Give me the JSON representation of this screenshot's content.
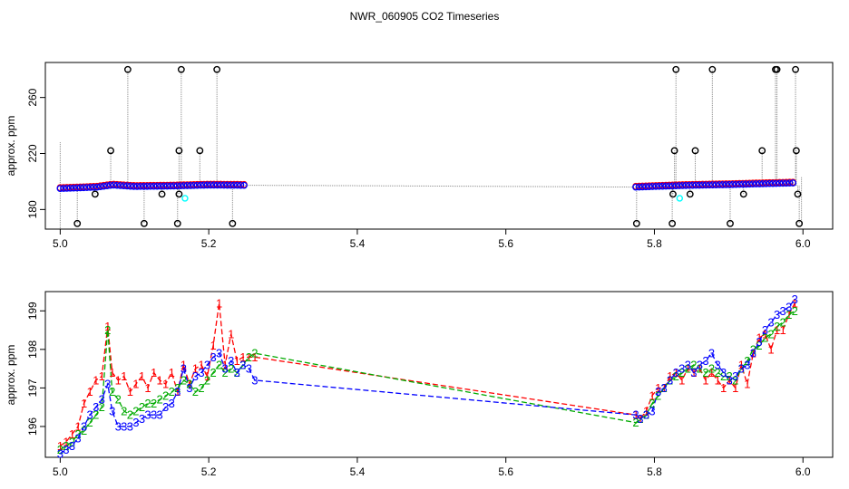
{
  "figure": {
    "title": "NWR_060905  CO2 Timeseries"
  },
  "chart_data": [
    {
      "type": "scatter",
      "title": "",
      "xlabel": "",
      "ylabel": "approx. ppm",
      "xlim": [
        4.98,
        6.04
      ],
      "ylim": [
        166,
        285
      ],
      "xticks": [
        5.0,
        5.2,
        5.4,
        5.6,
        5.8,
        6.0
      ],
      "xtick_labels": [
        "5.0",
        "5.2",
        "5.4",
        "5.6",
        "5.8",
        "6.0"
      ],
      "yticks": [
        180,
        220,
        260
      ],
      "ytick_labels": [
        "180",
        "220",
        "260"
      ],
      "colors": {
        "line": "#888888",
        "points": "#0000ff",
        "points_alt": "#ff0000",
        "points_alt2": "#00aa00",
        "outlier": "#000000",
        "cyan": "#00ffff"
      },
      "baseline": [
        [
          5.0,
          195.0
        ],
        [
          5.05,
          196.0
        ],
        [
          5.07,
          197.5
        ],
        [
          5.1,
          196.5
        ],
        [
          5.15,
          196.8
        ],
        [
          5.2,
          197.5
        ],
        [
          5.25,
          197.3
        ],
        [
          5.4,
          197.0
        ],
        [
          5.6,
          196.5
        ],
        [
          5.775,
          196.0
        ],
        [
          5.8,
          196.5
        ],
        [
          5.85,
          197.3
        ],
        [
          5.9,
          197.8
        ],
        [
          5.95,
          198.5
        ],
        [
          5.99,
          199.0
        ]
      ],
      "outliers_high": [
        5.068,
        5.091,
        5.16,
        5.163,
        5.188,
        5.211,
        5.827,
        5.829,
        5.855,
        5.878,
        5.945,
        5.963,
        5.965,
        5.99,
        5.991
      ],
      "outliers_high_values": [
        222,
        280,
        222,
        280,
        222,
        280,
        222,
        280,
        222,
        280,
        222,
        280,
        280,
        280,
        222
      ],
      "outliers_low": [
        5.023,
        5.047,
        5.113,
        5.137,
        5.158,
        5.16,
        5.232,
        5.776,
        5.824,
        5.825,
        5.848,
        5.902,
        5.92,
        5.993,
        5.995
      ],
      "outliers_low_values": [
        170,
        191,
        170,
        191,
        170,
        191,
        170,
        170,
        170,
        191,
        191,
        170,
        191,
        191,
        170
      ],
      "cyan_points_x": [
        5.168,
        5.834
      ],
      "cyan_points_y": [
        188,
        188
      ]
    },
    {
      "type": "line",
      "title": "",
      "xlabel": "",
      "ylabel": "approx. ppm",
      "xlim": [
        4.98,
        6.04
      ],
      "ylim": [
        195.2,
        199.5
      ],
      "xticks": [
        5.0,
        5.2,
        5.4,
        5.6,
        5.8,
        6.0
      ],
      "xtick_labels": [
        "5.0",
        "5.2",
        "5.4",
        "5.6",
        "5.8",
        "6.0"
      ],
      "yticks": [
        196,
        197,
        198,
        199
      ],
      "ytick_labels": [
        "196",
        "197",
        "198",
        "199"
      ],
      "series": [
        {
          "name": "1",
          "color": "#ff0000",
          "x": [
            5.0,
            5.008,
            5.016,
            5.024,
            5.032,
            5.04,
            5.048,
            5.056,
            5.064,
            5.07,
            5.078,
            5.086,
            5.094,
            5.102,
            5.11,
            5.118,
            5.126,
            5.134,
            5.142,
            5.15,
            5.158,
            5.166,
            5.174,
            5.182,
            5.19,
            5.198,
            5.206,
            5.214,
            5.222,
            5.23,
            5.238,
            5.246,
            5.254,
            5.262,
            5.775,
            5.781,
            5.789,
            5.797,
            5.805,
            5.813,
            5.821,
            5.829,
            5.837,
            5.845,
            5.853,
            5.861,
            5.869,
            5.877,
            5.885,
            5.893,
            5.901,
            5.909,
            5.917,
            5.925,
            5.933,
            5.941,
            5.949,
            5.957,
            5.965,
            5.973,
            5.981,
            5.989
          ],
          "y": [
            195.5,
            195.6,
            195.8,
            196.0,
            196.6,
            196.9,
            197.2,
            197.3,
            198.6,
            197.4,
            197.2,
            197.3,
            196.9,
            197.1,
            197.3,
            197.0,
            197.4,
            197.2,
            197.1,
            197.4,
            196.9,
            197.6,
            197.1,
            197.5,
            197.6,
            197.3,
            198.1,
            199.2,
            197.6,
            198.4,
            197.7,
            197.8,
            197.8,
            197.8,
            196.3,
            196.2,
            196.4,
            196.8,
            197.0,
            197.0,
            197.3,
            197.4,
            197.2,
            197.5,
            197.4,
            197.5,
            197.2,
            197.4,
            197.2,
            197.0,
            197.2,
            197.0,
            197.6,
            197.1,
            197.9,
            198.3,
            198.4,
            198.0,
            198.5,
            198.5,
            198.9,
            199.2
          ]
        },
        {
          "name": "2",
          "color": "#00aa00",
          "x": [
            5.0,
            5.008,
            5.016,
            5.024,
            5.032,
            5.04,
            5.048,
            5.056,
            5.064,
            5.07,
            5.078,
            5.086,
            5.094,
            5.102,
            5.11,
            5.118,
            5.126,
            5.134,
            5.142,
            5.15,
            5.158,
            5.166,
            5.174,
            5.182,
            5.19,
            5.198,
            5.206,
            5.214,
            5.222,
            5.23,
            5.238,
            5.246,
            5.254,
            5.262,
            5.775,
            5.781,
            5.789,
            5.797,
            5.805,
            5.813,
            5.821,
            5.829,
            5.837,
            5.845,
            5.853,
            5.861,
            5.869,
            5.877,
            5.885,
            5.893,
            5.901,
            5.909,
            5.917,
            5.925,
            5.933,
            5.941,
            5.949,
            5.957,
            5.965,
            5.973,
            5.981,
            5.989
          ],
          "y": [
            195.4,
            195.5,
            195.6,
            195.8,
            195.9,
            196.1,
            196.3,
            196.5,
            198.5,
            196.9,
            196.7,
            196.4,
            196.3,
            196.4,
            196.5,
            196.6,
            196.6,
            196.7,
            196.8,
            196.9,
            197.0,
            197.2,
            197.1,
            196.9,
            197.0,
            197.2,
            197.4,
            197.6,
            197.4,
            197.5,
            197.4,
            197.6,
            197.8,
            197.9,
            196.1,
            196.2,
            196.3,
            196.6,
            196.8,
            197.0,
            197.2,
            197.3,
            197.4,
            197.5,
            197.6,
            197.5,
            197.4,
            197.5,
            197.4,
            197.3,
            197.3,
            197.2,
            197.5,
            197.7,
            198.0,
            198.1,
            198.3,
            198.4,
            198.6,
            198.7,
            198.9,
            199.0
          ]
        },
        {
          "name": "3",
          "color": "#0000ff",
          "x": [
            5.0,
            5.008,
            5.016,
            5.024,
            5.032,
            5.04,
            5.048,
            5.056,
            5.064,
            5.07,
            5.078,
            5.086,
            5.094,
            5.102,
            5.11,
            5.118,
            5.126,
            5.134,
            5.142,
            5.15,
            5.158,
            5.166,
            5.174,
            5.182,
            5.19,
            5.198,
            5.206,
            5.214,
            5.222,
            5.23,
            5.238,
            5.246,
            5.254,
            5.262,
            5.775,
            5.781,
            5.789,
            5.797,
            5.805,
            5.813,
            5.821,
            5.829,
            5.837,
            5.845,
            5.853,
            5.861,
            5.869,
            5.877,
            5.885,
            5.893,
            5.901,
            5.909,
            5.917,
            5.925,
            5.933,
            5.941,
            5.949,
            5.957,
            5.965,
            5.973,
            5.981,
            5.989
          ],
          "y": [
            195.3,
            195.4,
            195.5,
            195.7,
            196.0,
            196.3,
            196.5,
            196.7,
            197.1,
            196.4,
            196.0,
            196.0,
            196.0,
            196.1,
            196.2,
            196.3,
            196.3,
            196.3,
            196.5,
            196.6,
            196.9,
            197.5,
            197.0,
            197.3,
            197.4,
            197.6,
            197.8,
            197.9,
            197.5,
            197.7,
            197.4,
            197.6,
            197.5,
            197.2,
            196.3,
            196.2,
            196.3,
            196.4,
            196.9,
            197.0,
            197.2,
            197.4,
            197.5,
            197.6,
            197.4,
            197.6,
            197.7,
            197.9,
            197.6,
            197.4,
            197.2,
            197.3,
            197.5,
            197.6,
            197.9,
            198.2,
            198.5,
            198.7,
            198.9,
            199.0,
            199.1,
            199.3
          ]
        }
      ]
    }
  ]
}
